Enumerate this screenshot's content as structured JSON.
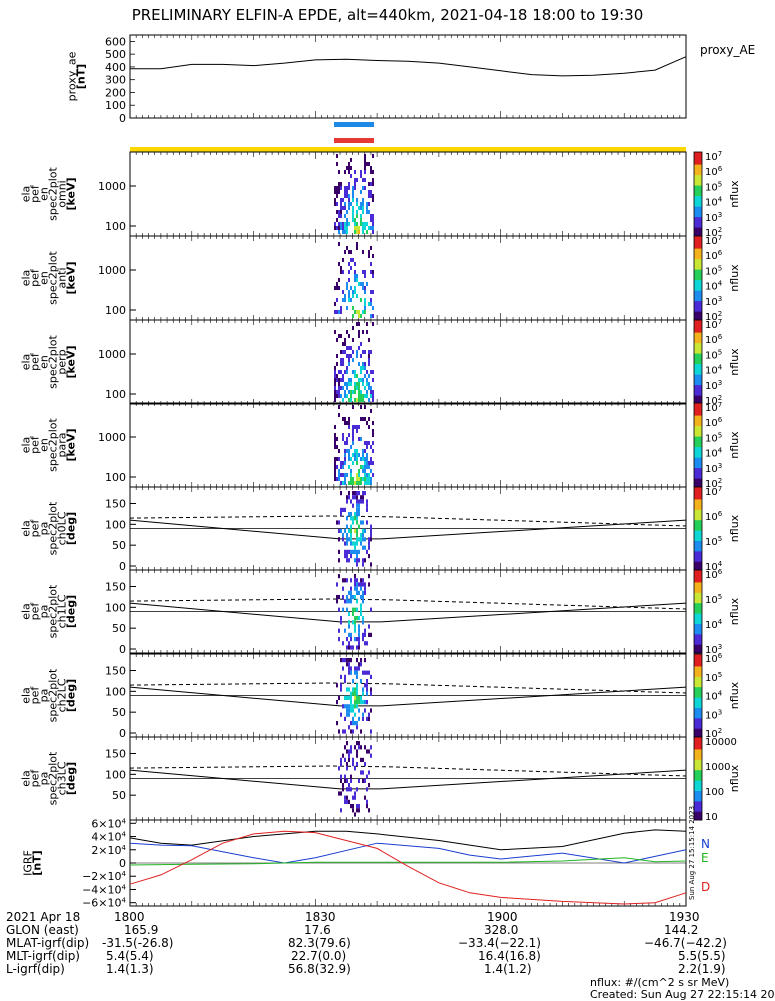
{
  "title": "PRELIMINARY ELFIN-A EPDE, alt=440km, 2021-04-18 18:00 to 19:30",
  "colors": {
    "frame": "#000000",
    "ae_line": "#000000",
    "dusk_bar": "#1e88e5",
    "dawn_bar": "#e53935",
    "yellow_bar": "#ffd700",
    "N": "#1a3ecf",
    "E": "#22b522",
    "D": "#e02020",
    "B": "#000000"
  },
  "ae_panel": {
    "ylabel_lines": [
      "proxy_ae",
      "[nT]"
    ],
    "yticks": [
      "600",
      "500",
      "400",
      "300",
      "200",
      "100",
      "0"
    ],
    "right_label": "proxy_AE",
    "chart_data": {
      "type": "line",
      "x": [
        0,
        5,
        10,
        15,
        20,
        25,
        30,
        35,
        40,
        45,
        50,
        55,
        60,
        65,
        70,
        75,
        80,
        85,
        90
      ],
      "y": [
        385,
        385,
        420,
        420,
        410,
        430,
        455,
        460,
        450,
        445,
        430,
        400,
        370,
        340,
        330,
        335,
        350,
        375,
        480
      ],
      "ylim": [
        0,
        650
      ],
      "xlim": [
        0,
        90
      ]
    }
  },
  "spec_panels": [
    {
      "id": "omni",
      "ylabel_lines": [
        "ela",
        "pef",
        "en",
        "spec2plot",
        "omni",
        "[keV]"
      ],
      "yticks": [
        "1000",
        "100"
      ],
      "cbar_label": "nflux"
    },
    {
      "id": "anti",
      "ylabel_lines": [
        "ela",
        "pef",
        "en",
        "spec2plot",
        "anti",
        "[keV]"
      ],
      "yticks": [
        "1000",
        "100"
      ],
      "cbar_label": "nflux"
    },
    {
      "id": "perp",
      "ylabel_lines": [
        "ela",
        "pef",
        "en",
        "spec2plot",
        "perp",
        "[keV]"
      ],
      "yticks": [
        "1000",
        "100"
      ],
      "cbar_label": "nflux"
    },
    {
      "id": "para",
      "ylabel_lines": [
        "ela",
        "pef",
        "en",
        "spec2plot",
        "para",
        "[keV]"
      ],
      "yticks": [
        "1000",
        "100"
      ],
      "cbar_label": "nflux"
    }
  ],
  "pa_panels": [
    {
      "id": "ch0LC",
      "ylabel_lines": [
        "ela",
        "pef",
        "pa",
        "spec2plot",
        "ch0LC",
        "[deg]"
      ],
      "yticks": [
        "150",
        "100",
        "50",
        "0"
      ],
      "cbar_label": "nflux"
    },
    {
      "id": "ch1LC",
      "ylabel_lines": [
        "ela",
        "pef",
        "pa",
        "spec2plot",
        "ch1LC",
        "[deg]"
      ],
      "yticks": [
        "150",
        "100",
        "50",
        "0"
      ],
      "cbar_label": "nflux"
    },
    {
      "id": "ch2LC",
      "ylabel_lines": [
        "ela",
        "pef",
        "pa",
        "spec2plot",
        "ch2LC",
        "[deg]"
      ],
      "yticks": [
        "150",
        "100",
        "50",
        "0"
      ],
      "cbar_label": "nflux"
    },
    {
      "id": "ch3LC",
      "ylabel_lines": [
        "ela",
        "pef",
        "pa",
        "spec2plot",
        "ch3LC",
        "[deg]"
      ],
      "yticks": [
        "150",
        "100",
        "50"
      ],
      "cbar_label": "nflux"
    }
  ],
  "colorbars": [
    {
      "ticks": [
        {
          "base": "10",
          "exp": "7"
        },
        {
          "base": "10",
          "exp": "6"
        },
        {
          "base": "10",
          "exp": "5"
        },
        {
          "base": "10",
          "exp": "4"
        },
        {
          "base": "10",
          "exp": "3"
        },
        {
          "base": "10",
          "exp": "2"
        }
      ]
    },
    {
      "ticks": [
        {
          "base": "10",
          "exp": "7"
        },
        {
          "base": "10",
          "exp": "6"
        },
        {
          "base": "10",
          "exp": "5"
        },
        {
          "base": "10",
          "exp": "4"
        },
        {
          "base": "10",
          "exp": "3"
        },
        {
          "base": "10",
          "exp": "2"
        }
      ]
    },
    {
      "ticks": [
        {
          "base": "10",
          "exp": "7"
        },
        {
          "base": "10",
          "exp": "6"
        },
        {
          "base": "10",
          "exp": "5"
        },
        {
          "base": "10",
          "exp": "4"
        },
        {
          "base": "10",
          "exp": "3"
        },
        {
          "base": "10",
          "exp": "2"
        }
      ]
    },
    {
      "ticks": [
        {
          "base": "10",
          "exp": "7"
        },
        {
          "base": "10",
          "exp": "6"
        },
        {
          "base": "10",
          "exp": "5"
        },
        {
          "base": "10",
          "exp": "4"
        },
        {
          "base": "10",
          "exp": "3"
        },
        {
          "base": "10",
          "exp": "2"
        }
      ]
    },
    {
      "ticks": [
        {
          "base": "10",
          "exp": "7"
        },
        {
          "base": "10",
          "exp": "6"
        },
        {
          "base": "10",
          "exp": "5"
        },
        {
          "base": "10",
          "exp": "4"
        }
      ]
    },
    {
      "ticks": [
        {
          "base": "10",
          "exp": "6"
        },
        {
          "base": "10",
          "exp": "5"
        },
        {
          "base": "10",
          "exp": "4"
        },
        {
          "base": "10",
          "exp": "3"
        }
      ]
    },
    {
      "ticks": [
        {
          "base": "10",
          "exp": "6"
        },
        {
          "base": "10",
          "exp": "5"
        },
        {
          "base": "10",
          "exp": "4"
        },
        {
          "base": "10",
          "exp": "3"
        },
        {
          "base": "10",
          "exp": "2"
        }
      ]
    },
    {
      "ticks": [
        {
          "base": "10000",
          "exp": ""
        },
        {
          "base": "1000",
          "exp": ""
        },
        {
          "base": "100",
          "exp": ""
        },
        {
          "base": "10",
          "exp": ""
        }
      ]
    }
  ],
  "igrf_panel": {
    "ylabel_lines": [
      "IGRF",
      "[nT]"
    ],
    "yticks": [
      {
        "base": "6×10",
        "exp": "4"
      },
      {
        "base": "4×10",
        "exp": "4"
      },
      {
        "base": "2×10",
        "exp": "4"
      },
      {
        "base": "0",
        "exp": ""
      },
      {
        "base": "−2×10",
        "exp": "4"
      },
      {
        "base": "−4×10",
        "exp": "4"
      },
      {
        "base": "−6×10",
        "exp": "4"
      }
    ],
    "legend": [
      "N",
      "E",
      "D"
    ],
    "side_text": "Sun Aug 27 15:15:14 2023",
    "chart_data": {
      "type": "line",
      "ylim": [
        -65000,
        65000
      ],
      "xlim": [
        0,
        90
      ],
      "series": [
        {
          "key": "B",
          "x": [
            0,
            5,
            10,
            20,
            30,
            35,
            40,
            50,
            55,
            60,
            70,
            80,
            85,
            90
          ],
          "y": [
            38000,
            30000,
            27000,
            40000,
            48000,
            48000,
            44000,
            34000,
            27000,
            20000,
            25000,
            45000,
            50000,
            48000
          ]
        },
        {
          "key": "N",
          "x": [
            0,
            5,
            10,
            20,
            25,
            30,
            40,
            50,
            55,
            60,
            70,
            80,
            85,
            90
          ],
          "y": [
            30000,
            27000,
            26000,
            8000,
            0,
            8000,
            30000,
            22000,
            12000,
            6000,
            15000,
            0,
            10000,
            20000
          ]
        },
        {
          "key": "E",
          "x": [
            0,
            10,
            20,
            30,
            40,
            50,
            60,
            70,
            80,
            85,
            90
          ],
          "y": [
            -3000,
            -2000,
            -1000,
            1000,
            1000,
            1000,
            1000,
            3000,
            8000,
            2000,
            3000
          ]
        },
        {
          "key": "D",
          "x": [
            0,
            5,
            10,
            15,
            20,
            25,
            30,
            40,
            45,
            50,
            55,
            60,
            70,
            80,
            85,
            90
          ],
          "y": [
            -32000,
            -18000,
            5000,
            30000,
            44000,
            48000,
            46000,
            22000,
            -5000,
            -30000,
            -45000,
            -52000,
            -58000,
            -62000,
            -60000,
            -45000
          ]
        }
      ]
    }
  },
  "xaxis": {
    "first_label": "2021 Apr 18",
    "ticks": [
      "1800",
      "1830",
      "1900",
      "1930"
    ]
  },
  "ephemeris": [
    {
      "label": "GLON (east)",
      "values": [
        "165.9",
        "17.6",
        "328.0",
        "144.2"
      ]
    },
    {
      "label": "MLAT-igrf(dip)",
      "values": [
        "-31.5(-26.8)",
        "82.3(79.6)",
        "−33.4(−22.1)",
        "−46.7(−42.2)"
      ]
    },
    {
      "label": "MLT-igrf(dip)",
      "values": [
        "5.4(5.4)",
        "22.7(0.0)",
        "16.4(16.8)",
        "5.5(5.5)"
      ]
    },
    {
      "label": "L-igrf(dip)",
      "values": [
        "1.4(1.3)",
        "56.8(32.9)",
        "1.4(1.2)",
        "2.2(1.9)"
      ]
    }
  ],
  "footer": {
    "units": "nflux: #/(cm^2 s sr MeV)",
    "created": "Created: Sun Aug 27 22:15:14 2023"
  }
}
